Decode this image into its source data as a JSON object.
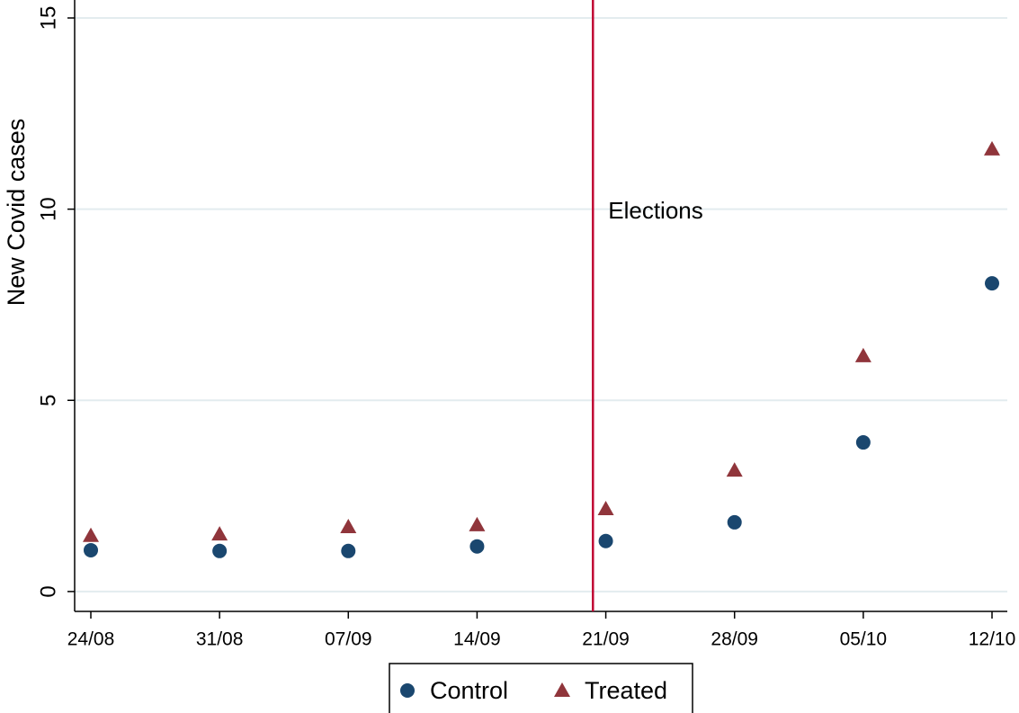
{
  "chart_data": {
    "type": "scatter",
    "y_label": "New Covid cases",
    "categories": [
      "24/08",
      "31/08",
      "07/09",
      "14/09",
      "21/09",
      "28/09",
      "05/10",
      "12/10"
    ],
    "series": [
      {
        "name": "Control",
        "color": "#1a476f",
        "marker": "circle",
        "values": [
          1.08,
          1.06,
          1.06,
          1.18,
          1.32,
          1.81,
          3.9,
          8.06
        ]
      },
      {
        "name": "Treated",
        "color": "#90353b",
        "marker": "triangle",
        "values": [
          1.46,
          1.5,
          1.69,
          1.74,
          2.16,
          3.17,
          6.16,
          11.57
        ]
      }
    ],
    "ylim": [
      -0.52,
      15.47
    ],
    "yticks": [
      0,
      5,
      10,
      15
    ],
    "grid": true,
    "annotations": [
      {
        "text": "Elections",
        "x": 3.9,
        "color": "#c10534"
      }
    ]
  }
}
